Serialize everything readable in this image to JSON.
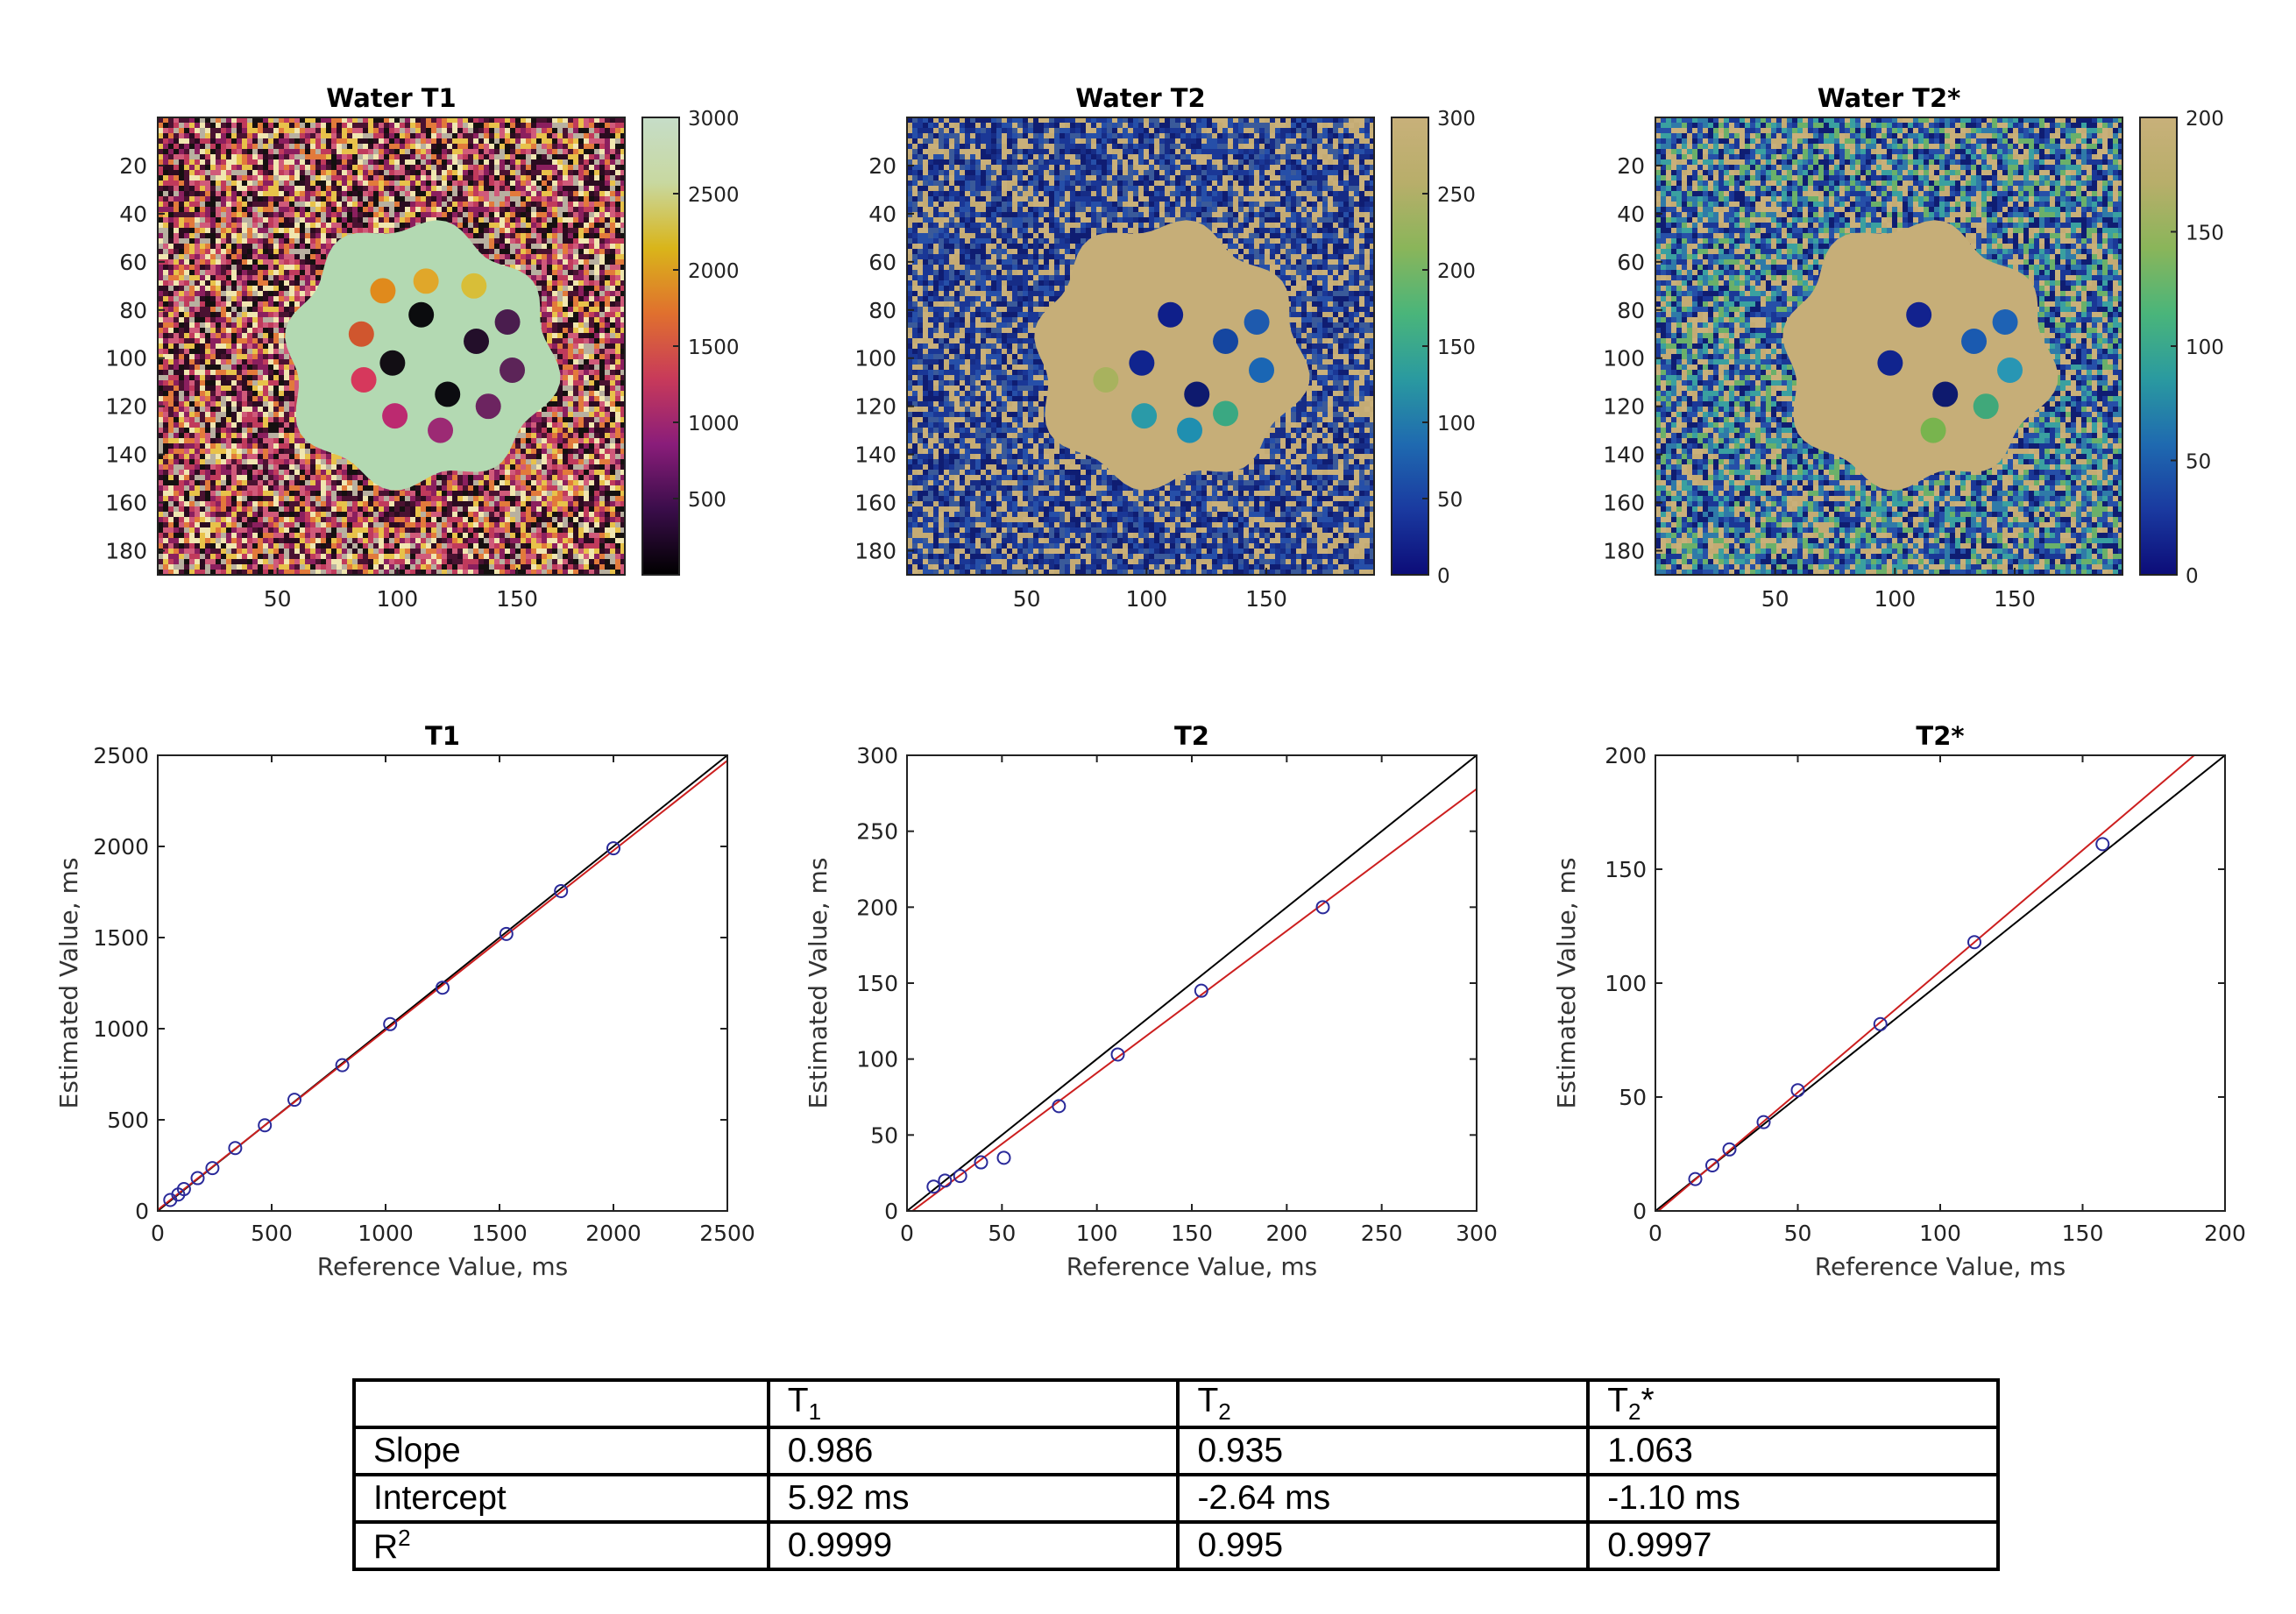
{
  "maps": [
    {
      "title": "Water T1",
      "colorbar": {
        "min": 0,
        "max": 3000,
        "ticks": [
          "3000",
          "2500",
          "2000",
          "1500",
          "1000",
          "500"
        ],
        "tick_values": [
          3000,
          2500,
          2000,
          1500,
          1000,
          500
        ],
        "colors": [
          "#000000",
          "#3a0d4a",
          "#8a1d7a",
          "#c83a5a",
          "#e0702e",
          "#d9b51a",
          "#c8d8a0",
          "#c6ddc8"
        ]
      },
      "yticks": [
        "20",
        "40",
        "60",
        "80",
        "100",
        "120",
        "140",
        "160",
        "180"
      ],
      "ytick_values": [
        20,
        40,
        60,
        80,
        100,
        120,
        140,
        160,
        180
      ],
      "xticks": [
        "50",
        "100",
        "150"
      ],
      "xtick_values": [
        50,
        100,
        150
      ],
      "background_palette": [
        "#2b0b20",
        "#8b1f5e",
        "#c03a5c",
        "#e27a3b",
        "#e8c24a",
        "#f0e6b0",
        "#4a1231",
        "#b8b0a0",
        "#151010",
        "#d05a7a"
      ],
      "phantom_color": "#b3d9b2",
      "vials": [
        {
          "color": "#e08a1c"
        },
        {
          "color": "#e0a72a"
        },
        {
          "color": "#d8be38"
        },
        {
          "color": "#d0562e"
        },
        {
          "color": "#0b0c0e"
        },
        {
          "color": "#4a1d4e"
        },
        {
          "color": "#120e14"
        },
        {
          "color": "#230f2a"
        },
        {
          "color": "#5c2458"
        },
        {
          "color": "#d6385c"
        },
        {
          "color": "#0c0c10"
        },
        {
          "color": "#6c2460"
        },
        {
          "color": "#bc2a70"
        },
        {
          "color": "#9c2a74"
        }
      ]
    },
    {
      "title": "Water T2",
      "colorbar": {
        "min": 0,
        "max": 300,
        "ticks": [
          "300",
          "250",
          "200",
          "150",
          "100",
          "50",
          "0"
        ],
        "tick_values": [
          300,
          250,
          200,
          150,
          100,
          50,
          0
        ],
        "colors": [
          "#0c0c78",
          "#1a3aa0",
          "#1f6ab0",
          "#2a9aa0",
          "#4ab57a",
          "#8ab55a",
          "#b8ae6a",
          "#c8b07a"
        ]
      },
      "yticks": [
        "20",
        "40",
        "60",
        "80",
        "100",
        "120",
        "140",
        "160",
        "180"
      ],
      "ytick_values": [
        20,
        40,
        60,
        80,
        100,
        120,
        140,
        160,
        180
      ],
      "xticks": [
        "50",
        "100",
        "150"
      ],
      "xtick_values": [
        50,
        100,
        150
      ],
      "background_palette": [
        "#c9b07a",
        "#0f1d72",
        "#1a3796",
        "#264fa8",
        "#c4ab74",
        "#162c86",
        "#3a5a9a"
      ],
      "phantom_color": "#c6ae78",
      "vials": [
        {
          "color": "#0f1f8a"
        },
        {
          "color": "#1546a0"
        },
        {
          "color": "#1e5aae"
        },
        {
          "color": "#10248e"
        },
        {
          "color": "#1a66b4"
        },
        {
          "color": "#a8b25e"
        },
        {
          "color": "#0e1a6e"
        },
        {
          "color": "#3aa882"
        },
        {
          "color": "#2a9aa8"
        },
        {
          "color": "#1f8fb0"
        }
      ]
    },
    {
      "title": "Water T2*",
      "colorbar": {
        "min": 0,
        "max": 200,
        "ticks": [
          "200",
          "150",
          "100",
          "50",
          "0"
        ],
        "tick_values": [
          200,
          150,
          100,
          50,
          0
        ],
        "colors": [
          "#0c0c78",
          "#1a3aa0",
          "#1f6ab0",
          "#2a9aa0",
          "#4ab57a",
          "#8ab55a",
          "#b8ae6a",
          "#c8b07a"
        ]
      },
      "yticks": [
        "20",
        "40",
        "60",
        "80",
        "100",
        "120",
        "140",
        "160",
        "180"
      ],
      "ytick_values": [
        20,
        40,
        60,
        80,
        100,
        120,
        140,
        160,
        180
      ],
      "xticks": [
        "50",
        "100",
        "150"
      ],
      "xtick_values": [
        50,
        100,
        150
      ],
      "background_palette": [
        "#c9b07a",
        "#0f1d72",
        "#1a3796",
        "#264fa8",
        "#c4ab74",
        "#2f7aa8",
        "#3aa0a0",
        "#6ab06a"
      ],
      "phantom_color": "#c6ae78",
      "vials": [
        {
          "color": "#12228e"
        },
        {
          "color": "#1a5ab0"
        },
        {
          "color": "#1e62b4"
        },
        {
          "color": "#10248e"
        },
        {
          "color": "#2896b4"
        },
        {
          "color": "#0e1a6e"
        },
        {
          "color": "#40a87a"
        },
        {
          "color": "#78b44e"
        }
      ]
    }
  ],
  "chart_data": [
    {
      "type": "scatter",
      "title": "T1",
      "xlabel": "Reference Value, ms",
      "ylabel": "Estimated Value, ms",
      "xlim": [
        0,
        2500
      ],
      "ylim": [
        0,
        2500
      ],
      "xticks": [
        "0",
        "500",
        "1000",
        "1500",
        "2000",
        "2500"
      ],
      "xtick_values": [
        0,
        500,
        1000,
        1500,
        2000,
        2500
      ],
      "yticks": [
        "0",
        "500",
        "1000",
        "1500",
        "2000",
        "2500"
      ],
      "ytick_values": [
        0,
        500,
        1000,
        1500,
        2000,
        2500
      ],
      "x": [
        55,
        90,
        115,
        175,
        240,
        340,
        470,
        600,
        810,
        1020,
        1250,
        1530,
        1770,
        2000
      ],
      "y": [
        60,
        90,
        120,
        180,
        235,
        345,
        470,
        610,
        800,
        1025,
        1225,
        1520,
        1755,
        1990
      ],
      "identity_line": {
        "slope": 1,
        "intercept": 0,
        "color": "#000000"
      },
      "fit_line": {
        "slope": 0.986,
        "intercept": 5.92,
        "color": "#cc1f1f"
      },
      "marker_color": "#2a2a9a"
    },
    {
      "type": "scatter",
      "title": "T2",
      "xlabel": "Reference Value, ms",
      "ylabel": "Estimated Value, ms",
      "xlim": [
        0,
        300
      ],
      "ylim": [
        0,
        300
      ],
      "xticks": [
        "0",
        "50",
        "100",
        "150",
        "200",
        "250",
        "300"
      ],
      "xtick_values": [
        0,
        50,
        100,
        150,
        200,
        250,
        300
      ],
      "yticks": [
        "0",
        "50",
        "100",
        "150",
        "200",
        "250",
        "300"
      ],
      "ytick_values": [
        0,
        50,
        100,
        150,
        200,
        250,
        300
      ],
      "x": [
        14,
        20,
        28,
        39,
        51,
        80,
        111,
        155,
        219
      ],
      "y": [
        16,
        20,
        23,
        32,
        35,
        69,
        103,
        145,
        200
      ],
      "identity_line": {
        "slope": 1,
        "intercept": 0,
        "color": "#000000"
      },
      "fit_line": {
        "slope": 0.935,
        "intercept": -2.64,
        "color": "#cc1f1f"
      },
      "marker_color": "#2a2a9a"
    },
    {
      "type": "scatter",
      "title": "T2*",
      "xlabel": "Reference Value, ms",
      "ylabel": "Estimated Value, ms",
      "xlim": [
        0,
        200
      ],
      "ylim": [
        0,
        200
      ],
      "xticks": [
        "0",
        "50",
        "100",
        "150",
        "200"
      ],
      "xtick_values": [
        0,
        50,
        100,
        150,
        200
      ],
      "yticks": [
        "0",
        "50",
        "100",
        "150",
        "200"
      ],
      "ytick_values": [
        0,
        50,
        100,
        150,
        200
      ],
      "x": [
        14,
        20,
        26,
        38,
        50,
        79,
        112,
        157
      ],
      "y": [
        14,
        20,
        27,
        39,
        53,
        82,
        118,
        161
      ],
      "identity_line": {
        "slope": 1,
        "intercept": 0,
        "color": "#000000"
      },
      "fit_line": {
        "slope": 1.063,
        "intercept": -1.1,
        "color": "#cc1f1f"
      },
      "marker_color": "#2a2a9a"
    }
  ],
  "table": {
    "header": {
      "blank": "",
      "t1": "T",
      "t1_sub": "1",
      "t2": "T",
      "t2_sub": "2",
      "t2s": "T",
      "t2s_sub": "2",
      "t2s_suffix": "*"
    },
    "rows": [
      {
        "label": "Slope",
        "t1": "0.986",
        "t2": "0.935",
        "t2s": "1.063"
      },
      {
        "label": "Intercept",
        "t1": "5.92 ms",
        "t2": "-2.64 ms",
        "t2s": "-1.10 ms"
      },
      {
        "label_main": "R",
        "label_sup": "2",
        "t1": "0.9999",
        "t2": "0.995",
        "t2s": "0.9997"
      }
    ]
  }
}
